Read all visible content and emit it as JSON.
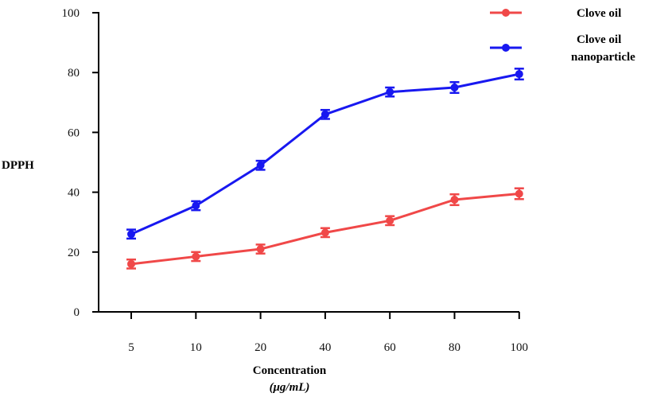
{
  "chart_data": {
    "type": "line",
    "categories": [
      "5",
      "10",
      "20",
      "40",
      "60",
      "80",
      "100"
    ],
    "ylim": [
      0,
      100
    ],
    "yticks": [
      "0",
      "20",
      "40",
      "60",
      "80",
      "100"
    ],
    "ylabel": "DPPH",
    "xlabel_line1": "Concentration",
    "xlabel_line2": "(μg/mL)",
    "legend_position": "top-right",
    "grid": false,
    "series": [
      {
        "name": "Clove oil",
        "color": "#f04848",
        "values": [
          16,
          18.5,
          21,
          26.5,
          30.5,
          37.5,
          39.5
        ],
        "errors": [
          1.5,
          1.5,
          1.5,
          1.5,
          1.5,
          1.8,
          1.8
        ]
      },
      {
        "name": "Clove oil nanoparticle",
        "name_lines": [
          "Clove oil",
          "nanoparticle"
        ],
        "color": "#1818f0",
        "values": [
          26,
          35.5,
          49,
          66,
          73.5,
          75,
          79.5
        ],
        "errors": [
          1.5,
          1.5,
          1.5,
          1.5,
          1.5,
          1.8,
          1.8
        ]
      }
    ]
  }
}
